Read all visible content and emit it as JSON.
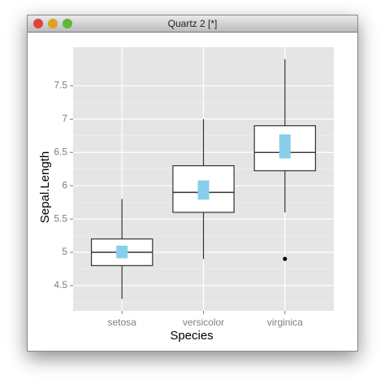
{
  "window_title": "Quartz 2 [*]",
  "chart_data": {
    "type": "box",
    "xlabel": "Species",
    "ylabel": "Sepal.Length",
    "categories": [
      "setosa",
      "versicolor",
      "virginica"
    ],
    "boxes": [
      {
        "min": 4.3,
        "q1": 4.8,
        "median": 5.0,
        "q3": 5.2,
        "max": 5.8,
        "outliers": []
      },
      {
        "min": 4.9,
        "q1": 5.6,
        "median": 5.9,
        "q3": 6.3,
        "max": 7.0,
        "outliers": []
      },
      {
        "min": 5.6,
        "q1": 6.225,
        "median": 6.5,
        "q3": 6.9,
        "max": 7.9,
        "outliers": [
          4.9
        ]
      }
    ],
    "mean_ci": {
      "low": [
        4.91,
        5.79,
        6.41
      ],
      "high": [
        5.1,
        6.08,
        6.77
      ],
      "color": "#87ceeb"
    },
    "ylim": [
      4.12,
      8.08
    ],
    "yticks": [
      4.5,
      5.0,
      5.5,
      6.0,
      6.5,
      7.0,
      7.5
    ],
    "yminor": [
      4.25,
      4.75,
      5.25,
      5.75,
      6.25,
      6.75,
      7.25,
      7.75
    ],
    "grid": true
  }
}
